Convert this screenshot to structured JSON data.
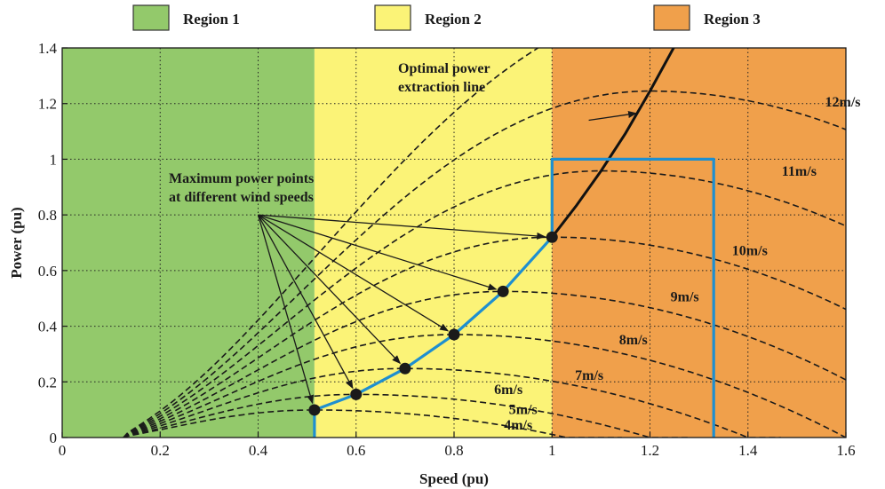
{
  "chart_data": {
    "type": "line",
    "xlabel": "Speed (pu)",
    "ylabel": "Power (pu)",
    "xlim": [
      0,
      1.6
    ],
    "ylim": [
      0,
      1.4
    ],
    "x_ticks": [
      0,
      0.2,
      0.4,
      0.6,
      0.8,
      1,
      1.2,
      1.4,
      1.6
    ],
    "y_ticks": [
      0,
      0.2,
      0.4,
      0.6,
      0.8,
      1,
      1.2,
      1.4
    ],
    "x_tick_labels": [
      "0",
      "0.2",
      "0.4",
      "0.6",
      "0.8",
      "1",
      "1.2",
      "1.4",
      "1.6"
    ],
    "y_tick_labels": [
      "0",
      "0.2",
      "0.4",
      "0.6",
      "0.8",
      "1",
      "1.2",
      "1.4"
    ],
    "grid": true,
    "legend_position": "top",
    "regions": [
      {
        "name": "Region 1",
        "x_range": [
          0,
          0.515
        ],
        "color": "#93c96b"
      },
      {
        "name": "Region 2",
        "x_range": [
          0.515,
          1.0
        ],
        "color": "#fbf377"
      },
      {
        "name": "Region 3",
        "x_range": [
          1.0,
          1.6
        ],
        "color": "#f0a04b"
      }
    ],
    "wind_speed_curves": [
      {
        "label": "4m/s",
        "peak_x": 0.515,
        "peak_y": 0.099
      },
      {
        "label": "5m/s",
        "peak_x": 0.6,
        "peak_y": 0.155
      },
      {
        "label": "6m/s",
        "peak_x": 0.7,
        "peak_y": 0.248
      },
      {
        "label": "7m/s",
        "peak_x": 0.8,
        "peak_y": 0.37
      },
      {
        "label": "8m/s",
        "peak_x": 0.9,
        "peak_y": 0.525
      },
      {
        "label": "9m/s",
        "peak_x": 1.0,
        "peak_y": 0.72
      },
      {
        "label": "10m/s",
        "peak_x": 1.1,
        "peak_y": 0.958
      },
      {
        "label": "11m/s",
        "peak_x": 1.2,
        "peak_y": 1.245
      },
      {
        "label": "12m/s",
        "peak_x": 1.3,
        "peak_y": 1.58
      }
    ],
    "max_power_points": [
      {
        "x": 0.515,
        "y": 0.099
      },
      {
        "x": 0.6,
        "y": 0.155
      },
      {
        "x": 0.7,
        "y": 0.248
      },
      {
        "x": 0.8,
        "y": 0.37
      },
      {
        "x": 0.9,
        "y": 0.525
      },
      {
        "x": 1.0,
        "y": 0.72
      }
    ],
    "optimal_power_line": {
      "label": "Optimal power extraction line",
      "x": [
        1.0,
        1.05,
        1.1,
        1.15,
        1.2,
        1.25,
        1.27
      ],
      "y": [
        0.72,
        0.834,
        0.958,
        1.093,
        1.245,
        1.406,
        1.475
      ]
    },
    "operating_path": {
      "color": "#1e8fd0",
      "x": [
        0.515,
        0.515,
        0.6,
        0.7,
        0.8,
        0.9,
        1.0,
        1.0,
        1.33,
        1.33
      ],
      "y": [
        0,
        0.099,
        0.155,
        0.248,
        0.37,
        0.525,
        0.72,
        1.0,
        1.0,
        0
      ]
    },
    "annotations": {
      "optimal_line": [
        "Optimal power",
        "extraction line"
      ],
      "max_points": [
        "Maximum power points",
        "at different wind speeds"
      ],
      "max_points_origin": {
        "x": 0.4,
        "y": 0.8
      }
    }
  }
}
